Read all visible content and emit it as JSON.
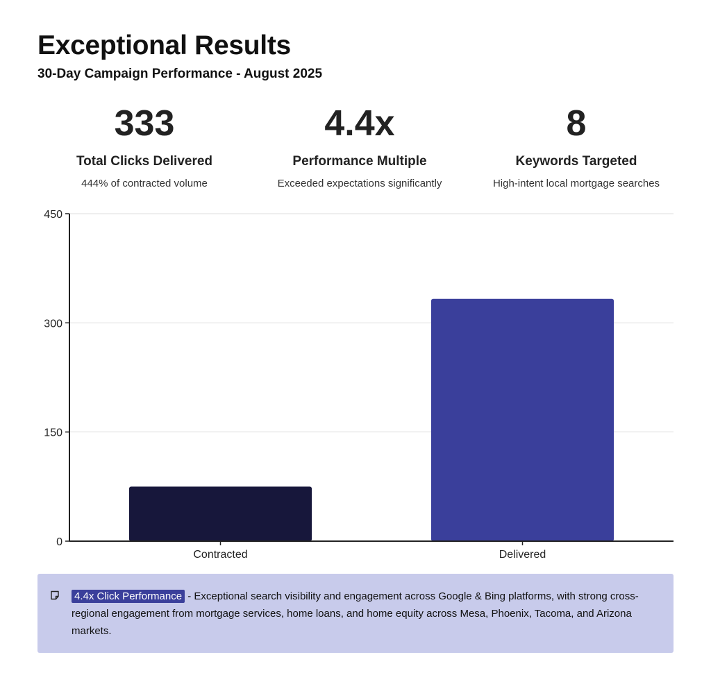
{
  "header": {
    "title": "Exceptional Results",
    "subtitle": "30-Day Campaign Performance - August 2025"
  },
  "stats": [
    {
      "value": "333",
      "label": "Total Clicks Delivered",
      "desc": "444% of contracted volume"
    },
    {
      "value": "4.4x",
      "label": "Performance Multiple",
      "desc": "Exceeded expectations significantly"
    },
    {
      "value": "8",
      "label": "Keywords Targeted",
      "desc": "High-intent local mortgage searches"
    }
  ],
  "chart_data": {
    "type": "bar",
    "categories": [
      "Contracted",
      "Delivered"
    ],
    "values": [
      75,
      333
    ],
    "ylim": [
      0,
      450
    ],
    "yticks": [
      0,
      150,
      300,
      450
    ],
    "grid": true,
    "colors": [
      "#17173b",
      "#3a3f9b"
    ]
  },
  "note": {
    "tag": "4.4x Click Performance",
    "text": " - Exceptional search visibility and engagement across Google & Bing platforms, with strong cross-regional engagement from mortgage services, home loans, and home equity across Mesa, Phoenix, Tacoma, and Arizona markets.",
    "icon": "note-icon",
    "background": "#c8cbeb",
    "tag_color": "#3a3f9b"
  }
}
